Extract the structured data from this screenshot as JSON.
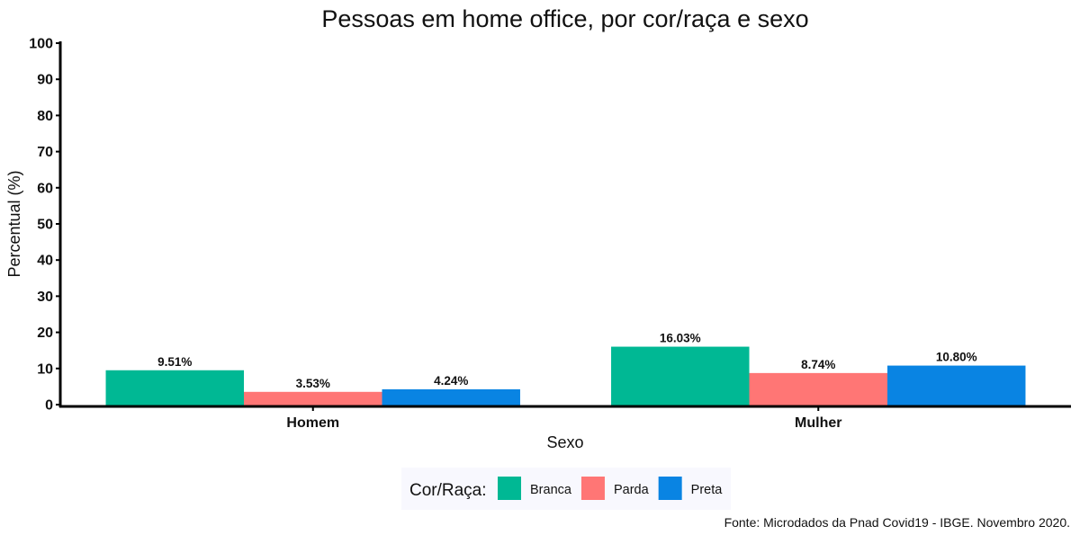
{
  "chart_data": {
    "type": "bar",
    "title": "Pessoas em home office, por cor/raça e sexo",
    "xlabel": "Sexo",
    "ylabel": "Percentual (%)",
    "ylim": [
      0,
      100
    ],
    "yticks": [
      0,
      10,
      20,
      30,
      40,
      50,
      60,
      70,
      80,
      90,
      100
    ],
    "categories": [
      "Homem",
      "Mulher"
    ],
    "series": [
      {
        "name": "Branca",
        "values": [
          9.51,
          16.03
        ],
        "labels": [
          "9.51%",
          "16.03%"
        ],
        "color": "#00b894"
      },
      {
        "name": "Parda",
        "values": [
          3.53,
          8.74
        ],
        "labels": [
          "3.53%",
          "8.74%"
        ],
        "color": "#ff7675"
      },
      {
        "name": "Preta",
        "values": [
          4.24,
          10.8
        ],
        "labels": [
          "4.24%",
          "10.80%"
        ],
        "color": "#0984e3"
      }
    ],
    "legend": {
      "title": "Cor/Raça:",
      "position": "bottom",
      "background": "#f8f8fe"
    },
    "grid": false,
    "caption": "Fonte: Microdados da Pnad Covid19 - IBGE. Novembro 2020."
  }
}
